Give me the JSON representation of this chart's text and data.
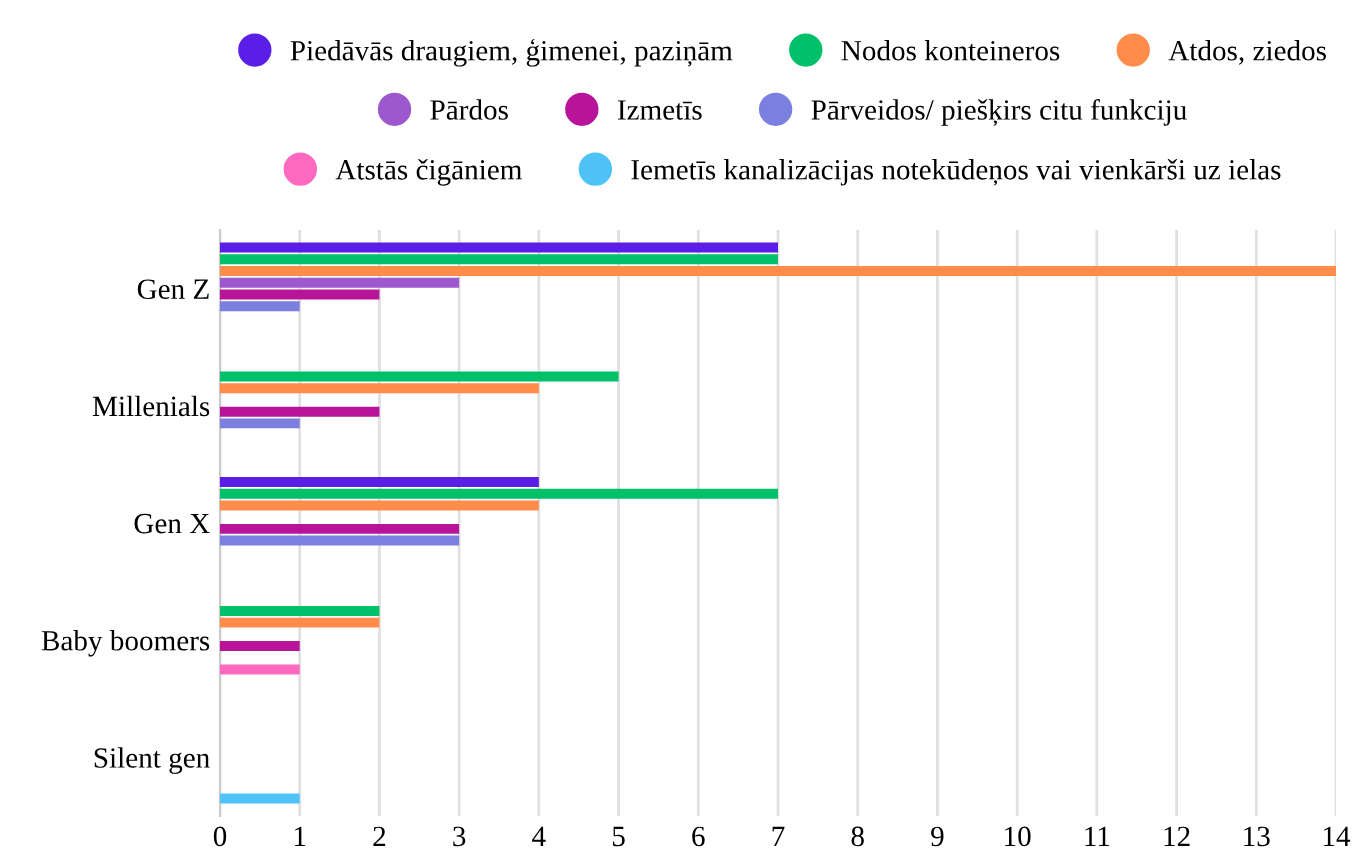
{
  "chart_data": {
    "type": "bar",
    "orientation": "horizontal",
    "categories": [
      "Gen Z",
      "Millenials",
      "Gen X",
      "Baby boomers",
      "Silent gen"
    ],
    "series": [
      {
        "name": "Piedāvās draugiem, ģimenei, paziņām",
        "color": "#5a1ee6",
        "values": [
          7,
          null,
          4,
          null,
          null
        ]
      },
      {
        "name": "Nodos konteineros",
        "color": "#00c16a",
        "values": [
          7,
          5,
          7,
          2,
          null
        ]
      },
      {
        "name": "Atdos, ziedos",
        "color": "#ff8c4a",
        "values": [
          14,
          4,
          4,
          2,
          null
        ]
      },
      {
        "name": "Pārdos",
        "color": "#9c58cc",
        "values": [
          3,
          null,
          null,
          null,
          null
        ]
      },
      {
        "name": "Izmetīs",
        "color": "#b8149a",
        "values": [
          2,
          2,
          3,
          1,
          null
        ]
      },
      {
        "name": "Pārveidos/ piešķirs citu funkciju",
        "color": "#7b7fe0",
        "values": [
          1,
          1,
          3,
          null,
          null
        ]
      },
      {
        "name": "Atstās čigāniem",
        "color": "#ff69c0",
        "values": [
          null,
          null,
          null,
          1,
          null
        ]
      },
      {
        "name": "Iemetīs kanalizācijas notekūdeņos vai vienkārši uz ielas",
        "color": "#4fc3f7",
        "values": [
          null,
          null,
          null,
          null,
          1
        ]
      }
    ],
    "xlim": [
      0,
      14
    ],
    "xticks": [
      0,
      1,
      2,
      3,
      4,
      5,
      6,
      7,
      8,
      9,
      10,
      11,
      12,
      13,
      14
    ],
    "grid": "x",
    "legend": "top"
  }
}
